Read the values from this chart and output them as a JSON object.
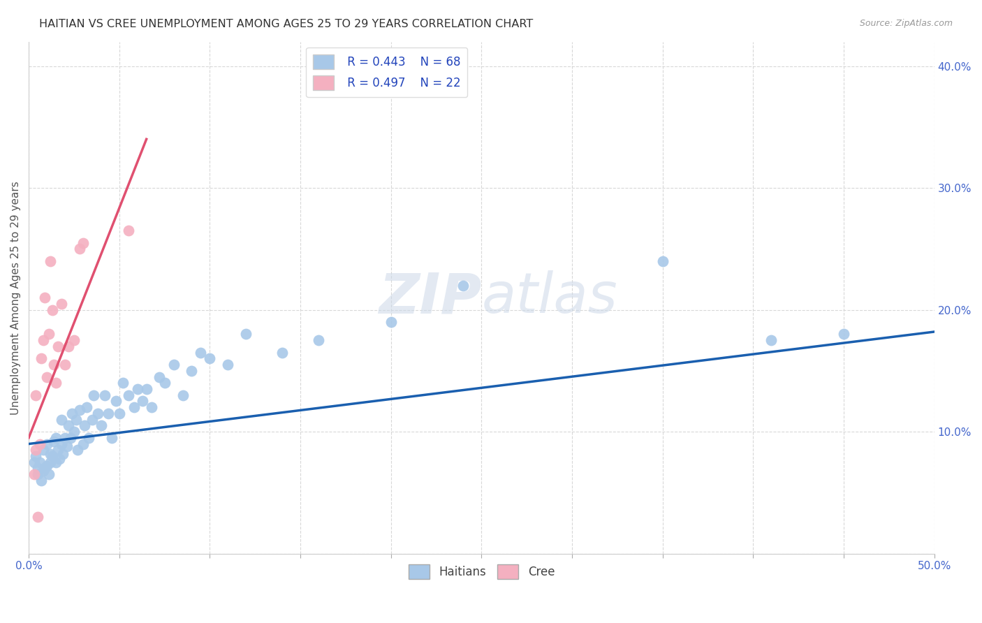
{
  "title": "HAITIAN VS CREE UNEMPLOYMENT AMONG AGES 25 TO 29 YEARS CORRELATION CHART",
  "source": "Source: ZipAtlas.com",
  "ylabel": "Unemployment Among Ages 25 to 29 years",
  "xlim": [
    0.0,
    0.5
  ],
  "ylim": [
    0.0,
    0.42
  ],
  "xticks": [
    0.0,
    0.05,
    0.1,
    0.15,
    0.2,
    0.25,
    0.3,
    0.35,
    0.4,
    0.45,
    0.5
  ],
  "yticks": [
    0.0,
    0.1,
    0.2,
    0.3,
    0.4
  ],
  "legend_r_haitians": "R = 0.443",
  "legend_n_haitians": "N = 68",
  "legend_r_cree": "R = 0.497",
  "legend_n_cree": "N = 22",
  "haitians_color": "#a8c8e8",
  "cree_color": "#f4b0c0",
  "haitians_line_color": "#1a5faf",
  "cree_line_color": "#e05070",
  "watermark_color": "#ccd8e8",
  "background_color": "#ffffff",
  "grid_color": "#d8d8d8",
  "haitians_x": [
    0.003,
    0.004,
    0.005,
    0.005,
    0.006,
    0.007,
    0.008,
    0.008,
    0.009,
    0.01,
    0.01,
    0.011,
    0.012,
    0.012,
    0.013,
    0.014,
    0.015,
    0.015,
    0.016,
    0.017,
    0.018,
    0.018,
    0.019,
    0.02,
    0.021,
    0.022,
    0.023,
    0.024,
    0.025,
    0.026,
    0.027,
    0.028,
    0.03,
    0.031,
    0.032,
    0.033,
    0.035,
    0.036,
    0.038,
    0.04,
    0.042,
    0.044,
    0.046,
    0.048,
    0.05,
    0.052,
    0.055,
    0.058,
    0.06,
    0.063,
    0.065,
    0.068,
    0.072,
    0.075,
    0.08,
    0.085,
    0.09,
    0.095,
    0.1,
    0.11,
    0.12,
    0.14,
    0.16,
    0.2,
    0.24,
    0.35,
    0.41,
    0.45
  ],
  "haitians_y": [
    0.075,
    0.08,
    0.065,
    0.07,
    0.075,
    0.06,
    0.068,
    0.085,
    0.07,
    0.072,
    0.09,
    0.065,
    0.075,
    0.082,
    0.08,
    0.092,
    0.075,
    0.095,
    0.085,
    0.078,
    0.09,
    0.11,
    0.082,
    0.095,
    0.088,
    0.105,
    0.095,
    0.115,
    0.1,
    0.11,
    0.085,
    0.118,
    0.09,
    0.105,
    0.12,
    0.095,
    0.11,
    0.13,
    0.115,
    0.105,
    0.13,
    0.115,
    0.095,
    0.125,
    0.115,
    0.14,
    0.13,
    0.12,
    0.135,
    0.125,
    0.135,
    0.12,
    0.145,
    0.14,
    0.155,
    0.13,
    0.15,
    0.165,
    0.16,
    0.155,
    0.18,
    0.165,
    0.175,
    0.19,
    0.22,
    0.24,
    0.175,
    0.18
  ],
  "cree_x": [
    0.003,
    0.004,
    0.004,
    0.005,
    0.006,
    0.007,
    0.008,
    0.009,
    0.01,
    0.011,
    0.012,
    0.013,
    0.014,
    0.015,
    0.016,
    0.018,
    0.02,
    0.022,
    0.025,
    0.028,
    0.03,
    0.055
  ],
  "cree_y": [
    0.065,
    0.13,
    0.085,
    0.03,
    0.09,
    0.16,
    0.175,
    0.21,
    0.145,
    0.18,
    0.24,
    0.2,
    0.155,
    0.14,
    0.17,
    0.205,
    0.155,
    0.17,
    0.175,
    0.25,
    0.255,
    0.265
  ],
  "haitians_trend_x": [
    0.0,
    0.5
  ],
  "haitians_trend_y": [
    0.09,
    0.182
  ],
  "cree_trend_x": [
    0.0,
    0.065
  ],
  "cree_trend_y": [
    0.095,
    0.34
  ]
}
